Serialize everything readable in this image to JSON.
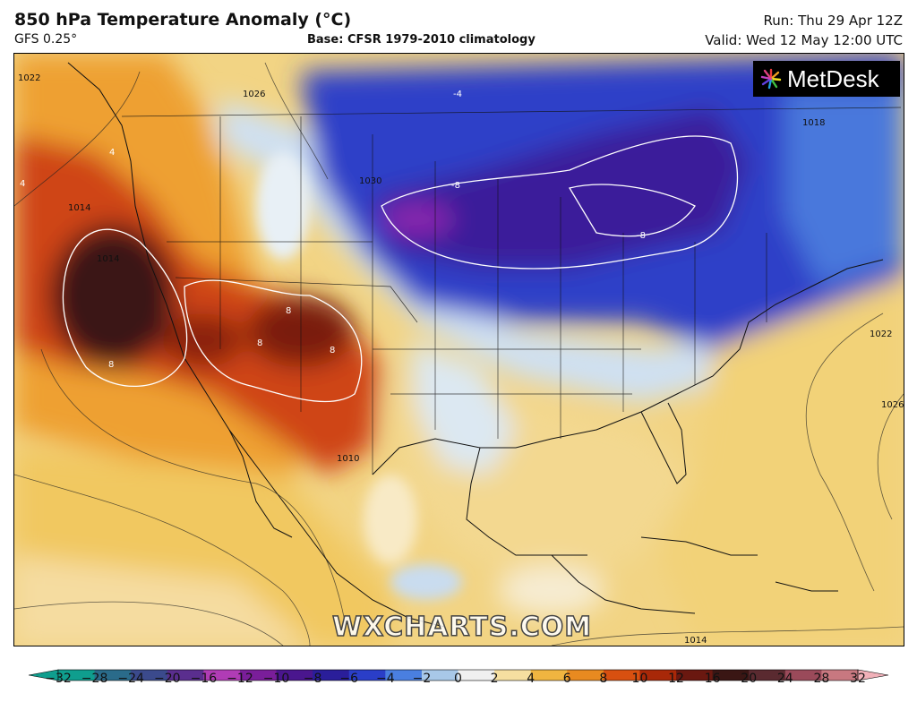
{
  "header": {
    "title": "850 hPa Temperature Anomaly (°C)",
    "model": "GFS 0.25°",
    "base": "Base: CFSR 1979-2010 climatology",
    "run": "Run: Thu 29 Apr 12Z",
    "valid": "Valid: Wed 12 May 12:00 UTC"
  },
  "branding": {
    "logo_text": "MetDesk",
    "watermark": "WXCHARTS.COM"
  },
  "isobar_labels": [
    "1022",
    "1026",
    "1030",
    "1014",
    "1018",
    "1014",
    "1022",
    "1026",
    "1014",
    "1010"
  ],
  "anomaly_labels": [
    "-8",
    "-8",
    "-4",
    "8",
    "8",
    "8",
    "8",
    "4",
    "4"
  ],
  "legend": {
    "ticks": [
      "−32",
      "−28",
      "−24",
      "−20",
      "−16",
      "−12",
      "−10",
      "−8",
      "−6",
      "−4",
      "−2",
      "0",
      "2",
      "4",
      "6",
      "8",
      "10",
      "12",
      "16",
      "20",
      "24",
      "28",
      "32"
    ],
    "colors": [
      "#0f9e8e",
      "#2a6b8a",
      "#3b4a8c",
      "#5a2e8e",
      "#b03cb5",
      "#7a1e9a",
      "#4a168e",
      "#2a1e9a",
      "#2a3ec8",
      "#4a7fe0",
      "#a8c8e8",
      "#f0f0f0",
      "#f6dfa0",
      "#f0b540",
      "#e88a20",
      "#d85010",
      "#a82808",
      "#6a1810",
      "#3a1614",
      "#5a2a30",
      "#9a4a5a",
      "#c87880",
      "#f0b0b8"
    ]
  }
}
